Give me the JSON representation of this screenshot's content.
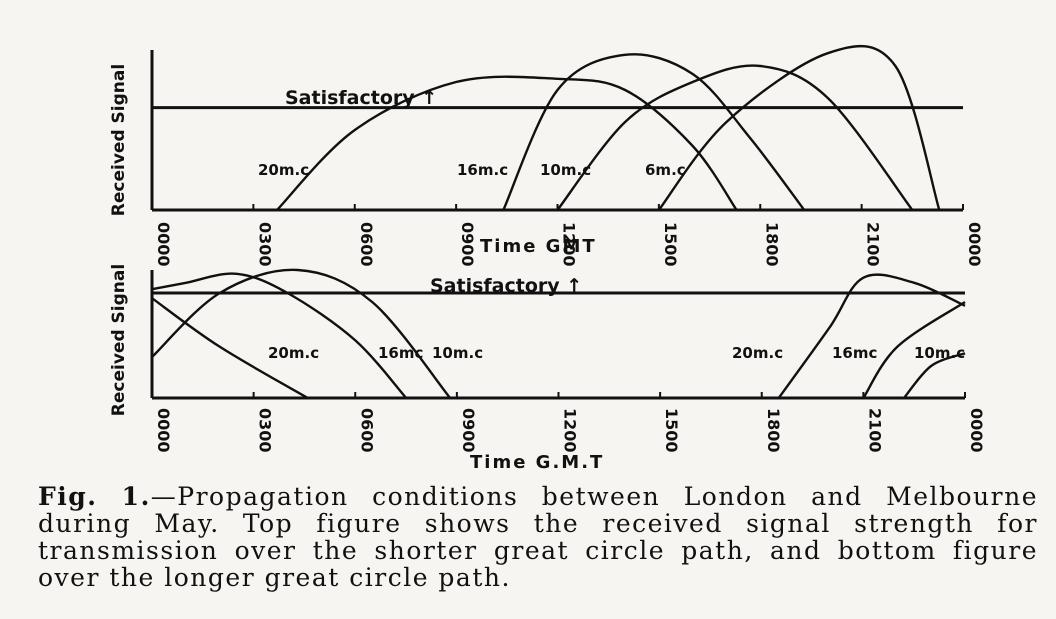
{
  "chart_data": [
    {
      "type": "line",
      "title": "",
      "xlabel": "Time  GMT",
      "ylabel": "Received Signal",
      "x_ticks": [
        "0000",
        "0300",
        "0600",
        "0900",
        "1200",
        "1500",
        "1800",
        "2100",
        "0000"
      ],
      "xlim": [
        0,
        24
      ],
      "ylim": [
        0,
        1
      ],
      "grid": false,
      "threshold": {
        "label": "Satisfactory",
        "arrow": "↑",
        "value": 0.64
      },
      "series": [
        {
          "name": "20m.c",
          "x": [
            3.7,
            6.0,
            9.0,
            12.0,
            14.0,
            16.0,
            17.3
          ],
          "y": [
            0.0,
            0.5,
            0.8,
            0.82,
            0.75,
            0.4,
            0.0
          ]
        },
        {
          "name": "16m.c",
          "x": [
            10.4,
            12.0,
            14.0,
            16.0,
            17.7,
            19.3
          ],
          "y": [
            0.0,
            0.75,
            0.97,
            0.85,
            0.45,
            0.0
          ]
        },
        {
          "name": "10m.c",
          "x": [
            12.0,
            14.0,
            16.0,
            18.0,
            20.0,
            22.5
          ],
          "y": [
            0.0,
            0.55,
            0.8,
            0.9,
            0.7,
            0.0
          ]
        },
        {
          "name": "6m.c",
          "x": [
            15.0,
            17.0,
            20.0,
            22.0,
            23.3
          ],
          "y": [
            0.0,
            0.55,
            0.98,
            0.9,
            0.0
          ]
        }
      ]
    },
    {
      "type": "line",
      "title": "",
      "xlabel": "Time  G.M.T",
      "ylabel": "Received Signal",
      "x_ticks": [
        "0000",
        "0300",
        "0600",
        "0900",
        "1200",
        "1500",
        "1800",
        "2100",
        "0000"
      ],
      "xlim": [
        0,
        24
      ],
      "ylim": [
        0,
        1
      ],
      "grid": false,
      "threshold": {
        "label": "Satisfactory",
        "arrow": "↑",
        "value": 0.82
      },
      "series": [
        {
          "name": "20m.c",
          "x": [
            0.0,
            2.0,
            4.6
          ],
          "y": [
            0.78,
            0.4,
            0.0
          ],
          "x2": [
            18.5,
            20.0,
            21.0,
            22.5,
            24.0
          ],
          "y2": [
            0.0,
            0.55,
            0.94,
            0.9,
            0.72
          ]
        },
        {
          "name": "16mc",
          "x": [
            0.0,
            1.0,
            2.5,
            4.0,
            6.0,
            7.5
          ],
          "y": [
            0.85,
            0.9,
            0.97,
            0.82,
            0.45,
            0.0
          ],
          "x2": [
            21.0,
            22.0,
            24.0
          ],
          "y2": [
            0.0,
            0.4,
            0.75
          ]
        },
        {
          "name": "10m.c",
          "x": [
            0.0,
            2.0,
            4.3,
            6.5,
            8.8
          ],
          "y": [
            0.32,
            0.82,
            1.0,
            0.75,
            0.0
          ],
          "x2": [
            22.2,
            23.0,
            24.0
          ],
          "y2": [
            0.0,
            0.25,
            0.35
          ]
        }
      ]
    }
  ],
  "caption": {
    "label": "Fig. 1.",
    "text": "—Propagation conditions between London and Melbourne during May.  Top figure shows the received signal strength for transmission over the shorter great circle path, and bottom figure over the longer great circle path."
  }
}
